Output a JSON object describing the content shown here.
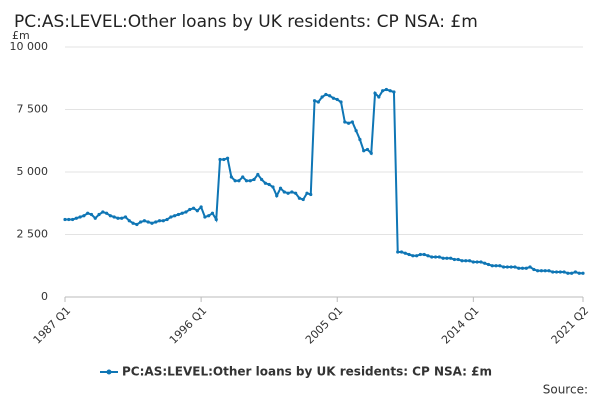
{
  "chart_data": {
    "type": "line",
    "title": "PC:AS:LEVEL:Other loans by UK residents: CP NSA: £m",
    "y_unit": "£m",
    "source": "Source:",
    "categories": [
      "1987 Q1",
      null,
      null,
      null,
      null,
      null,
      null,
      null,
      null,
      null,
      null,
      null,
      null,
      null,
      null,
      null,
      null,
      null,
      null,
      null,
      null,
      null,
      null,
      null,
      null,
      null,
      null,
      null,
      null,
      null,
      null,
      null,
      null,
      null,
      null,
      null,
      "1996 Q1",
      null,
      null,
      null,
      null,
      null,
      null,
      null,
      null,
      null,
      null,
      null,
      null,
      null,
      null,
      null,
      null,
      null,
      null,
      null,
      null,
      null,
      null,
      null,
      null,
      null,
      null,
      null,
      null,
      null,
      null,
      null,
      null,
      null,
      null,
      null,
      "2005 Q1",
      null,
      null,
      null,
      null,
      null,
      null,
      null,
      null,
      null,
      null,
      null,
      null,
      null,
      null,
      null,
      null,
      null,
      null,
      null,
      null,
      null,
      null,
      null,
      null,
      null,
      null,
      null,
      null,
      null,
      null,
      null,
      null,
      null,
      null,
      null,
      "2014 Q1",
      null,
      null,
      null,
      null,
      null,
      null,
      null,
      null,
      null,
      null,
      null,
      null,
      null,
      null,
      null,
      null,
      null,
      null,
      null,
      null,
      null,
      null,
      null,
      null,
      null,
      null,
      null,
      null,
      "2021 Q2"
    ],
    "series": [
      {
        "name": "PC:AS:LEVEL:Other loans by UK residents: CP NSA: £m",
        "color": "#0f76b5",
        "values": [
          3100,
          3100,
          3100,
          3150,
          3200,
          3250,
          3350,
          3300,
          3150,
          3300,
          3400,
          3350,
          3250,
          3200,
          3150,
          3150,
          3200,
          3050,
          2950,
          2900,
          3000,
          3050,
          3000,
          2950,
          3000,
          3050,
          3050,
          3100,
          3200,
          3250,
          3300,
          3350,
          3400,
          3500,
          3550,
          3450,
          3600,
          3200,
          3250,
          3350,
          3100,
          5500,
          5500,
          5550,
          4800,
          4650,
          4650,
          4800,
          4650,
          4650,
          4700,
          4900,
          4700,
          4550,
          4500,
          4400,
          4050,
          4350,
          4200,
          4150,
          4200,
          4150,
          3950,
          3900,
          4150,
          4100,
          7850,
          7800,
          8000,
          8100,
          8050,
          7950,
          7900,
          7800,
          7000,
          6950,
          7000,
          6650,
          6300,
          5850,
          5900,
          5750,
          8150,
          8000,
          8250,
          8300,
          8250,
          8200,
          1800,
          1800,
          1750,
          1700,
          1650,
          1650,
          1700,
          1700,
          1650,
          1600,
          1600,
          1600,
          1550,
          1550,
          1550,
          1500,
          1500,
          1450,
          1450,
          1450,
          1400,
          1400,
          1400,
          1350,
          1300,
          1250,
          1250,
          1250,
          1200,
          1200,
          1200,
          1200,
          1150,
          1150,
          1150,
          1200,
          1100,
          1050,
          1050,
          1050,
          1050,
          1000,
          1000,
          1000,
          1000,
          950,
          950,
          1000,
          950,
          950
        ]
      }
    ],
    "ylim": [
      0,
      10000
    ],
    "yticks": [
      0,
      {
        "value": 2500,
        "label": "2 500"
      },
      {
        "value": 5000,
        "label": "5 000"
      },
      {
        "value": 7500,
        "label": "7 500"
      },
      {
        "value": 10000,
        "label": "10 000"
      }
    ],
    "grid": true,
    "legend": "bottom"
  }
}
